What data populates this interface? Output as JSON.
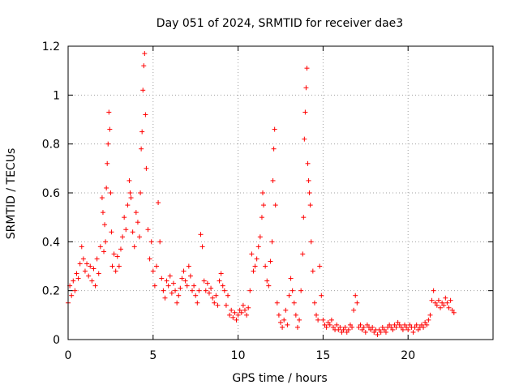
{
  "chart_data": {
    "type": "scatter",
    "title": "Day 051 of 2024, SRMTID for receiver dae3",
    "xlabel": "GPS time / hours",
    "ylabel": "SRMTID / TECUs",
    "xlim": [
      0,
      25
    ],
    "ylim": [
      0,
      1.2
    ],
    "xticks": [
      0,
      5,
      10,
      15,
      20
    ],
    "xtick_labels": [
      "0",
      "5",
      "10",
      "15",
      "20"
    ],
    "yticks": [
      0,
      0.2,
      0.4,
      0.6,
      0.8,
      1.0,
      1.2
    ],
    "ytick_labels": [
      "0",
      "0.2",
      "0.4",
      "0.6",
      "0.8",
      "1",
      "1.2"
    ],
    "grid": true,
    "marker": "+",
    "color": "#ff0000",
    "series": [
      {
        "name": "SRMTID",
        "points": [
          [
            0.0,
            0.15
          ],
          [
            0.1,
            0.22
          ],
          [
            0.2,
            0.18
          ],
          [
            0.3,
            0.24
          ],
          [
            0.4,
            0.2
          ],
          [
            0.5,
            0.27
          ],
          [
            0.6,
            0.25
          ],
          [
            0.7,
            0.31
          ],
          [
            0.8,
            0.38
          ],
          [
            0.9,
            0.33
          ],
          [
            1.0,
            0.28
          ],
          [
            1.1,
            0.31
          ],
          [
            1.2,
            0.26
          ],
          [
            1.3,
            0.3
          ],
          [
            1.4,
            0.24
          ],
          [
            1.5,
            0.29
          ],
          [
            1.6,
            0.22
          ],
          [
            1.7,
            0.33
          ],
          [
            1.8,
            0.27
          ],
          [
            1.9,
            0.38
          ],
          [
            2.0,
            0.58
          ],
          [
            2.05,
            0.52
          ],
          [
            2.1,
            0.36
          ],
          [
            2.15,
            0.47
          ],
          [
            2.2,
            0.4
          ],
          [
            2.25,
            0.62
          ],
          [
            2.3,
            0.72
          ],
          [
            2.35,
            0.8
          ],
          [
            2.4,
            0.93
          ],
          [
            2.45,
            0.86
          ],
          [
            2.5,
            0.6
          ],
          [
            2.55,
            0.44
          ],
          [
            2.6,
            0.3
          ],
          [
            2.7,
            0.35
          ],
          [
            2.8,
            0.28
          ],
          [
            2.9,
            0.34
          ],
          [
            3.0,
            0.3
          ],
          [
            3.1,
            0.37
          ],
          [
            3.2,
            0.42
          ],
          [
            3.3,
            0.5
          ],
          [
            3.4,
            0.45
          ],
          [
            3.5,
            0.55
          ],
          [
            3.6,
            0.65
          ],
          [
            3.65,
            0.6
          ],
          [
            3.7,
            0.58
          ],
          [
            3.8,
            0.44
          ],
          [
            3.9,
            0.38
          ],
          [
            4.0,
            0.52
          ],
          [
            4.1,
            0.48
          ],
          [
            4.2,
            0.42
          ],
          [
            4.25,
            0.6
          ],
          [
            4.3,
            0.78
          ],
          [
            4.35,
            0.85
          ],
          [
            4.4,
            1.02
          ],
          [
            4.45,
            1.12
          ],
          [
            4.5,
            1.17
          ],
          [
            4.55,
            0.92
          ],
          [
            4.6,
            0.7
          ],
          [
            4.7,
            0.45
          ],
          [
            4.8,
            0.33
          ],
          [
            4.9,
            0.4
          ],
          [
            5.0,
            0.28
          ],
          [
            5.1,
            0.22
          ],
          [
            5.2,
            0.3
          ],
          [
            5.3,
            0.56
          ],
          [
            5.4,
            0.4
          ],
          [
            5.5,
            0.25
          ],
          [
            5.6,
            0.2
          ],
          [
            5.7,
            0.17
          ],
          [
            5.8,
            0.24
          ],
          [
            5.9,
            0.22
          ],
          [
            6.0,
            0.26
          ],
          [
            6.1,
            0.19
          ],
          [
            6.2,
            0.23
          ],
          [
            6.3,
            0.2
          ],
          [
            6.4,
            0.15
          ],
          [
            6.5,
            0.18
          ],
          [
            6.6,
            0.21
          ],
          [
            6.7,
            0.25
          ],
          [
            6.8,
            0.28
          ],
          [
            6.9,
            0.24
          ],
          [
            7.0,
            0.22
          ],
          [
            7.1,
            0.3
          ],
          [
            7.2,
            0.26
          ],
          [
            7.3,
            0.2
          ],
          [
            7.4,
            0.22
          ],
          [
            7.5,
            0.18
          ],
          [
            7.6,
            0.15
          ],
          [
            7.7,
            0.2
          ],
          [
            7.8,
            0.43
          ],
          [
            7.9,
            0.38
          ],
          [
            8.0,
            0.24
          ],
          [
            8.1,
            0.2
          ],
          [
            8.2,
            0.23
          ],
          [
            8.3,
            0.19
          ],
          [
            8.4,
            0.21
          ],
          [
            8.5,
            0.17
          ],
          [
            8.6,
            0.15
          ],
          [
            8.7,
            0.18
          ],
          [
            8.8,
            0.14
          ],
          [
            8.9,
            0.24
          ],
          [
            9.0,
            0.27
          ],
          [
            9.1,
            0.22
          ],
          [
            9.2,
            0.2
          ],
          [
            9.3,
            0.14
          ],
          [
            9.4,
            0.18
          ],
          [
            9.5,
            0.1
          ],
          [
            9.6,
            0.12
          ],
          [
            9.7,
            0.09
          ],
          [
            9.8,
            0.11
          ],
          [
            9.9,
            0.08
          ],
          [
            10.0,
            0.1
          ],
          [
            10.1,
            0.12
          ],
          [
            10.2,
            0.11
          ],
          [
            10.3,
            0.14
          ],
          [
            10.4,
            0.12
          ],
          [
            10.5,
            0.1
          ],
          [
            10.6,
            0.13
          ],
          [
            10.7,
            0.2
          ],
          [
            10.8,
            0.35
          ],
          [
            10.9,
            0.28
          ],
          [
            11.0,
            0.3
          ],
          [
            11.1,
            0.33
          ],
          [
            11.2,
            0.38
          ],
          [
            11.3,
            0.42
          ],
          [
            11.4,
            0.5
          ],
          [
            11.45,
            0.6
          ],
          [
            11.5,
            0.55
          ],
          [
            11.6,
            0.3
          ],
          [
            11.7,
            0.24
          ],
          [
            11.8,
            0.22
          ],
          [
            11.9,
            0.32
          ],
          [
            12.0,
            0.4
          ],
          [
            12.05,
            0.65
          ],
          [
            12.1,
            0.78
          ],
          [
            12.15,
            0.86
          ],
          [
            12.2,
            0.55
          ],
          [
            12.3,
            0.15
          ],
          [
            12.4,
            0.1
          ],
          [
            12.5,
            0.07
          ],
          [
            12.6,
            0.05
          ],
          [
            12.7,
            0.08
          ],
          [
            12.8,
            0.12
          ],
          [
            12.9,
            0.06
          ],
          [
            13.0,
            0.18
          ],
          [
            13.1,
            0.25
          ],
          [
            13.2,
            0.2
          ],
          [
            13.3,
            0.15
          ],
          [
            13.4,
            0.1
          ],
          [
            13.5,
            0.05
          ],
          [
            13.6,
            0.08
          ],
          [
            13.7,
            0.2
          ],
          [
            13.8,
            0.35
          ],
          [
            13.85,
            0.5
          ],
          [
            13.9,
            0.82
          ],
          [
            13.95,
            0.93
          ],
          [
            14.0,
            1.03
          ],
          [
            14.05,
            1.11
          ],
          [
            14.1,
            0.72
          ],
          [
            14.15,
            0.65
          ],
          [
            14.2,
            0.6
          ],
          [
            14.25,
            0.55
          ],
          [
            14.3,
            0.4
          ],
          [
            14.4,
            0.28
          ],
          [
            14.5,
            0.15
          ],
          [
            14.6,
            0.1
          ],
          [
            14.7,
            0.08
          ],
          [
            14.8,
            0.3
          ],
          [
            14.9,
            0.18
          ],
          [
            15.0,
            0.08
          ],
          [
            15.1,
            0.06
          ],
          [
            15.2,
            0.05
          ],
          [
            15.3,
            0.07
          ],
          [
            15.4,
            0.06
          ],
          [
            15.5,
            0.08
          ],
          [
            15.6,
            0.05
          ],
          [
            15.7,
            0.04
          ],
          [
            15.8,
            0.06
          ],
          [
            15.9,
            0.04
          ],
          [
            16.0,
            0.05
          ],
          [
            16.1,
            0.03
          ],
          [
            16.2,
            0.04
          ],
          [
            16.3,
            0.05
          ],
          [
            16.4,
            0.03
          ],
          [
            16.5,
            0.04
          ],
          [
            16.6,
            0.06
          ],
          [
            16.7,
            0.05
          ],
          [
            16.8,
            0.12
          ],
          [
            16.9,
            0.18
          ],
          [
            17.0,
            0.15
          ],
          [
            17.1,
            0.05
          ],
          [
            17.2,
            0.06
          ],
          [
            17.3,
            0.04
          ],
          [
            17.4,
            0.05
          ],
          [
            17.5,
            0.03
          ],
          [
            17.6,
            0.06
          ],
          [
            17.7,
            0.05
          ],
          [
            17.8,
            0.04
          ],
          [
            17.9,
            0.05
          ],
          [
            18.0,
            0.03
          ],
          [
            18.1,
            0.04
          ],
          [
            18.2,
            0.02
          ],
          [
            18.3,
            0.04
          ],
          [
            18.4,
            0.03
          ],
          [
            18.5,
            0.05
          ],
          [
            18.6,
            0.04
          ],
          [
            18.7,
            0.03
          ],
          [
            18.8,
            0.05
          ],
          [
            18.9,
            0.06
          ],
          [
            19.0,
            0.05
          ],
          [
            19.1,
            0.04
          ],
          [
            19.2,
            0.06
          ],
          [
            19.3,
            0.05
          ],
          [
            19.4,
            0.07
          ],
          [
            19.5,
            0.06
          ],
          [
            19.6,
            0.05
          ],
          [
            19.7,
            0.04
          ],
          [
            19.8,
            0.06
          ],
          [
            19.9,
            0.05
          ],
          [
            20.0,
            0.04
          ],
          [
            20.1,
            0.06
          ],
          [
            20.2,
            0.05
          ],
          [
            20.3,
            0.03
          ],
          [
            20.4,
            0.05
          ],
          [
            20.5,
            0.06
          ],
          [
            20.6,
            0.04
          ],
          [
            20.7,
            0.05
          ],
          [
            20.8,
            0.06
          ],
          [
            20.9,
            0.05
          ],
          [
            21.0,
            0.07
          ],
          [
            21.1,
            0.06
          ],
          [
            21.2,
            0.08
          ],
          [
            21.3,
            0.1
          ],
          [
            21.4,
            0.16
          ],
          [
            21.5,
            0.2
          ],
          [
            21.6,
            0.15
          ],
          [
            21.7,
            0.14
          ],
          [
            21.8,
            0.16
          ],
          [
            21.9,
            0.13
          ],
          [
            22.0,
            0.15
          ],
          [
            22.1,
            0.14
          ],
          [
            22.2,
            0.17
          ],
          [
            22.3,
            0.15
          ],
          [
            22.4,
            0.13
          ],
          [
            22.5,
            0.16
          ],
          [
            22.6,
            0.12
          ],
          [
            22.7,
            0.11
          ]
        ]
      }
    ]
  }
}
